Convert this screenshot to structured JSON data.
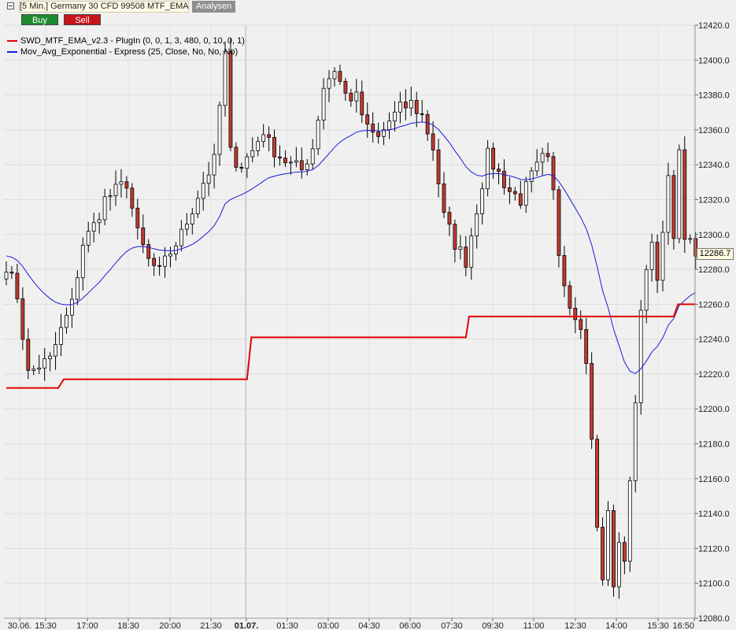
{
  "header": {
    "title": "[5 Min.] Germany 30 CFD   99508 MTF_EMA",
    "analysen_label": "Analysen",
    "buy_label": "Buy",
    "sell_label": "Sell"
  },
  "legend": [
    {
      "label": "SWD_MTF_EMA_v2.3 - PlugIn  (0, 0, 1, 3, 480, 0, 10, 0, 1)",
      "color": "#e00000"
    },
    {
      "label": "Mov_Avg_Exponential - Express  (25, Close, No, No, No)",
      "color": "#1a1adc"
    }
  ],
  "current_price_label": "12286.7",
  "chart_data": {
    "type": "candlestick",
    "ylim": [
      12080,
      12420
    ],
    "yticks": [
      12080,
      12100,
      12120,
      12140,
      12160,
      12180,
      12200,
      12220,
      12240,
      12260,
      12280,
      12300,
      12320,
      12340,
      12360,
      12380,
      12400,
      12420
    ],
    "ytick_labels": [
      "12080.0",
      "12100.0",
      "12120.0",
      "12140.0",
      "12160.0",
      "12180.0",
      "12200.0",
      "12220.0",
      "12240.0",
      "12260.0",
      "12280.0",
      "12300.0",
      "12320.0",
      "12340.0",
      "12360.0",
      "12380.0",
      "12400.0",
      "12420.0"
    ],
    "x_axis": {
      "ticks": [
        "30.06.",
        "15:30",
        "17:00",
        "18:30",
        "20:00",
        "21:30",
        "01.07.",
        "01:30",
        "03:00",
        "04:30",
        "06:00",
        "07:30",
        "09:30",
        "11:00",
        "12:30",
        "14:00",
        "15:30",
        "16:50"
      ],
      "bold_ticks": [
        "01.07."
      ],
      "vline_tick": "01.07."
    },
    "series": [
      {
        "name": "SWD_MTF_EMA_v2.3",
        "kind": "step",
        "color": "#e00000",
        "points": [
          [
            0,
            12212
          ],
          [
            9.5,
            12212
          ],
          [
            10.5,
            12217
          ],
          [
            44,
            12217
          ],
          [
            44.8,
            12241
          ],
          [
            84,
            12241
          ],
          [
            84.6,
            12253
          ],
          [
            122,
            12253
          ],
          [
            122.8,
            12260
          ],
          [
            126,
            12260
          ]
        ]
      }
    ],
    "ema_color": "#1a1adc",
    "up_color": "#ffffff",
    "down_color": "#c53a32",
    "close_anchors": [
      [
        0,
        12283
      ],
      [
        2,
        12265
      ],
      [
        4,
        12220
      ],
      [
        6,
        12225
      ],
      [
        8,
        12228
      ],
      [
        10,
        12245
      ],
      [
        12,
        12260
      ],
      [
        14,
        12295
      ],
      [
        16,
        12305
      ],
      [
        18,
        12320
      ],
      [
        20,
        12325
      ],
      [
        22,
        12330
      ],
      [
        24,
        12300
      ],
      [
        26,
        12285
      ],
      [
        28,
        12278
      ],
      [
        30,
        12290
      ],
      [
        32,
        12300
      ],
      [
        34,
        12315
      ],
      [
        36,
        12330
      ],
      [
        38,
        12342
      ],
      [
        40,
        12405
      ],
      [
        41,
        12345
      ],
      [
        43,
        12340
      ],
      [
        45,
        12348
      ],
      [
        47,
        12360
      ],
      [
        48,
        12352
      ],
      [
        50,
        12345
      ],
      [
        52,
        12340
      ],
      [
        54,
        12337
      ],
      [
        56,
        12350
      ],
      [
        58,
        12385
      ],
      [
        60,
        12395
      ],
      [
        62,
        12380
      ],
      [
        64,
        12378
      ],
      [
        66,
        12360
      ],
      [
        68,
        12355
      ],
      [
        70,
        12365
      ],
      [
        72,
        12372
      ],
      [
        74,
        12375
      ],
      [
        76,
        12368
      ],
      [
        78,
        12350
      ],
      [
        80,
        12310
      ],
      [
        82,
        12295
      ],
      [
        84,
        12285
      ],
      [
        86,
        12315
      ],
      [
        88,
        12345
      ],
      [
        90,
        12335
      ],
      [
        92,
        12325
      ],
      [
        94,
        12320
      ],
      [
        96,
        12333
      ],
      [
        98,
        12343
      ],
      [
        99.5,
        12340
      ],
      [
        101,
        12290
      ],
      [
        103,
        12260
      ],
      [
        105,
        12250
      ],
      [
        106,
        12225
      ],
      [
        107,
        12185
      ],
      [
        108,
        12130
      ],
      [
        109,
        12110
      ],
      [
        110,
        12140
      ],
      [
        111,
        12105
      ],
      [
        112,
        12120
      ],
      [
        113,
        12115
      ],
      [
        114,
        12160
      ],
      [
        115,
        12200
      ],
      [
        116,
        12260
      ],
      [
        118,
        12300
      ],
      [
        119,
        12270
      ],
      [
        121,
        12330
      ],
      [
        122,
        12302
      ],
      [
        123,
        12345
      ],
      [
        124,
        12300
      ],
      [
        126,
        12287
      ]
    ]
  }
}
